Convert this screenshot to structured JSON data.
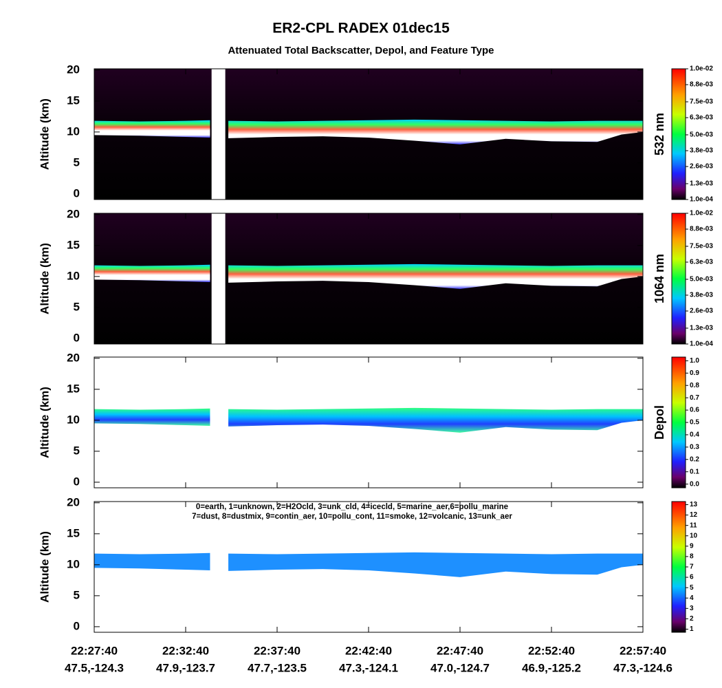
{
  "title": "ER2-CPL RADEX 01dec15",
  "subtitle": "Attenuated Total Backscatter, Depol, and Feature Type",
  "xlim": [
    "22:27:40",
    "22:57:40"
  ],
  "xticks": [
    "22:27:40",
    "22:32:40",
    "22:37:40",
    "22:42:40",
    "22:47:40",
    "22:52:40",
    "22:57:40"
  ],
  "xtick_locations": [
    "47.5,-124.3",
    "47.9,-123.7",
    "47.7,-123.5",
    "47.3,-124.1",
    "47.0,-124.7",
    "46.9,-125.2",
    "47.3,-124.6"
  ],
  "data_gap": [
    "22:34:05",
    "22:34:50"
  ],
  "cloud_layer": {
    "x": [
      "22:27:40",
      "22:30:10",
      "22:32:40",
      "22:34:00",
      "22:34:30",
      "22:35:00",
      "22:37:40",
      "22:40:10",
      "22:42:40",
      "22:45:10",
      "22:47:40",
      "22:50:10",
      "22:52:40",
      "22:55:10",
      "22:56:30",
      "22:57:40"
    ],
    "top": [
      11.8,
      11.7,
      11.8,
      11.9,
      null,
      11.8,
      11.7,
      11.8,
      11.9,
      12.0,
      11.9,
      11.8,
      11.7,
      11.8,
      11.8,
      11.8
    ],
    "base": [
      9.5,
      9.4,
      9.2,
      9.1,
      null,
      9.0,
      9.2,
      9.3,
      9.1,
      8.6,
      8.0,
      8.9,
      8.5,
      8.4,
      9.6,
      10.0
    ]
  },
  "chart_data": [
    {
      "type": "backscatter",
      "ylabel": "Altitude (km)",
      "ylim": [
        -0.9,
        20.2
      ],
      "yticks": [
        0,
        5,
        10,
        15,
        20
      ],
      "colorbar_label": "532 nm",
      "clim": [
        0.0001,
        0.01
      ],
      "cticks": [
        {
          "value": 0.0001,
          "label": "1.0e-04"
        },
        {
          "value": 0.0013,
          "label": "1.3e-03"
        },
        {
          "value": 0.0026,
          "label": "2.6e-03"
        },
        {
          "value": 0.0038,
          "label": "3.8e-03"
        },
        {
          "value": 0.005,
          "label": "5.0e-03"
        },
        {
          "value": 0.0063,
          "label": "6.3e-03"
        },
        {
          "value": 0.0075,
          "label": "7.5e-03"
        },
        {
          "value": 0.0088,
          "label": "8.8e-03"
        },
        {
          "value": 0.01,
          "label": "1.0e-02"
        }
      ]
    },
    {
      "type": "backscatter",
      "ylabel": "Altitude (km)",
      "ylim": [
        -0.9,
        20.2
      ],
      "yticks": [
        0,
        5,
        10,
        15,
        20
      ],
      "colorbar_label": "1064 nm",
      "clim": [
        0.0001,
        0.01
      ],
      "cticks": [
        {
          "value": 0.0001,
          "label": "1.0e-04"
        },
        {
          "value": 0.0013,
          "label": "1.3e-03"
        },
        {
          "value": 0.0026,
          "label": "2.6e-03"
        },
        {
          "value": 0.0038,
          "label": "3.8e-03"
        },
        {
          "value": 0.005,
          "label": "5.0e-03"
        },
        {
          "value": 0.0063,
          "label": "6.3e-03"
        },
        {
          "value": 0.0075,
          "label": "7.5e-03"
        },
        {
          "value": 0.0088,
          "label": "8.8e-03"
        },
        {
          "value": 0.01,
          "label": "1.0e-02"
        }
      ]
    },
    {
      "type": "depol",
      "ylabel": "Altitude (km)",
      "ylim": [
        -0.9,
        20.2
      ],
      "yticks": [
        0,
        5,
        10,
        15,
        20
      ],
      "colorbar_label": "Depol",
      "clim": [
        -0.03,
        1.03
      ],
      "cticks": [
        {
          "value": 0,
          "label": "0.0"
        },
        0.1,
        0.2,
        0.3,
        0.4,
        0.5,
        0.6,
        0.7,
        0.8,
        0.9,
        {
          "value": 1,
          "label": "1.0"
        }
      ]
    },
    {
      "type": "feature",
      "ylabel": "Altitude (km)",
      "ylim": [
        -0.9,
        20.2
      ],
      "yticks": [
        0,
        5,
        10,
        15,
        20
      ],
      "layer_color": "#1e90ff",
      "clim": [
        0.7,
        13.3
      ],
      "cticks": [
        1,
        2,
        3,
        4,
        5,
        6,
        7,
        8,
        9,
        10,
        11,
        12,
        13
      ],
      "annotations": [
        "0=earth, 1=unknown, 2=H2Ocld, 3=unk_cld, 4=icecld, 5=marine_aer,6=pollu_marine",
        "7=dust, 8=dustmix, 9=contin_aer, 10=pollu_cont, 11=smoke, 12=volcanic, 13=unk_aer"
      ]
    }
  ]
}
